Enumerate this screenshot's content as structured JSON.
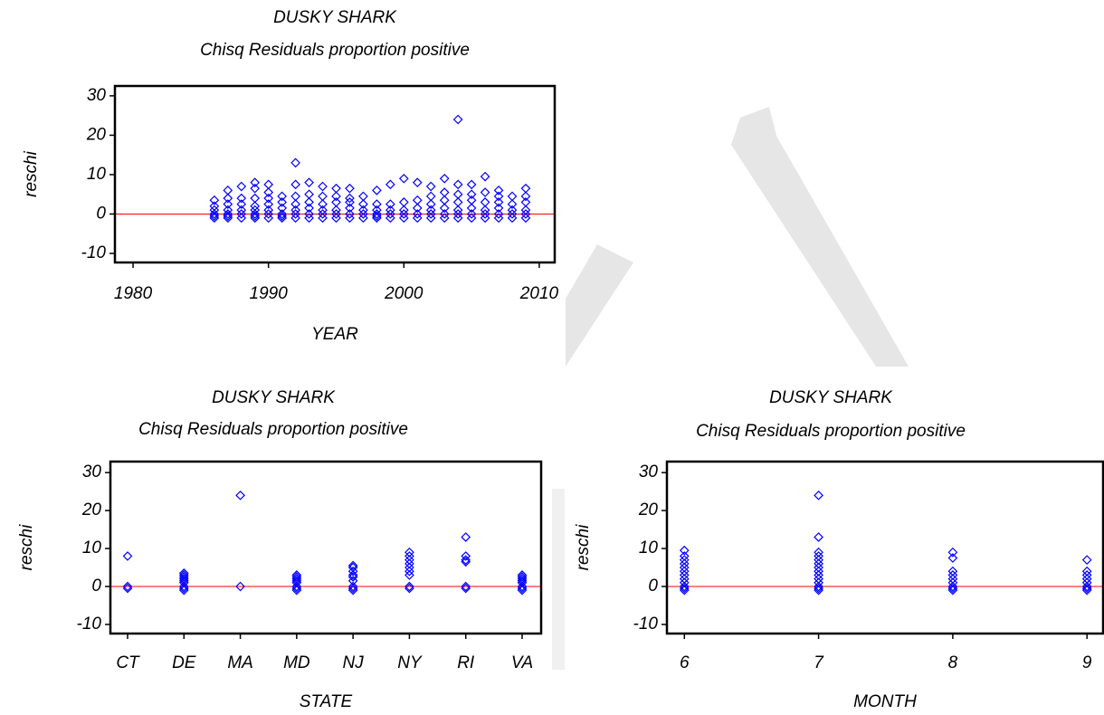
{
  "chart_data": [
    {
      "type": "scatter",
      "title": "DUSKY SHARK",
      "subtitle": "Chisq Residuals proportion positive",
      "x_label": "YEAR",
      "y_label": "reschi",
      "xlim": [
        1978.66,
        2011.14
      ],
      "xticks": [
        1980,
        1990,
        2000,
        2010
      ],
      "ylim": [
        -12.3,
        32.5
      ],
      "yticks": [
        -10,
        0,
        10,
        20,
        30
      ],
      "reference_line": {
        "value": 0,
        "color": "#ff0000"
      },
      "series": [
        {
          "color": "#0000ff",
          "marker": "diamond",
          "x": [
            1986,
            1986,
            1986,
            1986,
            1986,
            1986,
            1987,
            1987,
            1987,
            1987,
            1987,
            1987,
            1987,
            1988,
            1988,
            1988,
            1988,
            1988,
            1988,
            1989,
            1989,
            1989,
            1989,
            1989,
            1989,
            1989,
            1989,
            1990,
            1990,
            1990,
            1990,
            1990,
            1990,
            1990,
            1991,
            1991,
            1991,
            1991,
            1991,
            1991,
            1992,
            1992,
            1992,
            1992,
            1992,
            1992,
            1992,
            1993,
            1993,
            1993,
            1993,
            1993,
            1993,
            1994,
            1994,
            1994,
            1994,
            1994,
            1994,
            1995,
            1995,
            1995,
            1995,
            1995,
            1995,
            1996,
            1996,
            1996,
            1996,
            1996,
            1996,
            1997,
            1997,
            1997,
            1997,
            1997,
            1998,
            1998,
            1998,
            1998,
            1998,
            1998,
            1999,
            1999,
            1999,
            1999,
            1999,
            2000,
            2000,
            2000,
            2000,
            2000,
            2001,
            2001,
            2001,
            2001,
            2001,
            2002,
            2002,
            2002,
            2002,
            2002,
            2002,
            2003,
            2003,
            2003,
            2003,
            2003,
            2003,
            2004,
            2004,
            2004,
            2004,
            2004,
            2004,
            2004,
            2005,
            2005,
            2005,
            2005,
            2005,
            2005,
            2006,
            2006,
            2006,
            2006,
            2006,
            2006,
            2007,
            2007,
            2007,
            2007,
            2007,
            2007,
            2008,
            2008,
            2008,
            2008,
            2008,
            2009,
            2009,
            2009,
            2009,
            2009,
            2009
          ],
          "values": [
            -1,
            -0.5,
            0,
            1,
            2,
            3.5,
            -1,
            -0.5,
            0,
            1,
            2.5,
            4,
            6,
            -1,
            0,
            1,
            2.5,
            4,
            7,
            -1,
            -0.5,
            0,
            1,
            2,
            4,
            6.5,
            8,
            -1,
            0,
            1,
            2.5,
            4,
            5.5,
            7.5,
            -1,
            -0.5,
            0,
            1.5,
            3,
            4.5,
            -1,
            0,
            1,
            2.5,
            4.5,
            7.5,
            13,
            -1,
            0,
            1.5,
            3,
            5,
            8,
            -1,
            0,
            1,
            2.5,
            4.5,
            7,
            -1,
            0,
            1,
            3,
            4.5,
            6.5,
            -1,
            0,
            1.5,
            3,
            4,
            6.5,
            -1,
            0,
            1,
            2.5,
            4.5,
            -1,
            -0.5,
            0,
            1,
            2.5,
            6,
            -1,
            0,
            1,
            2.5,
            7.5,
            -1,
            0,
            1,
            3,
            9,
            -1,
            0,
            1.5,
            3.5,
            8,
            -1,
            0,
            1,
            2.5,
            4.5,
            7,
            -1,
            0,
            1.5,
            3.5,
            5.5,
            9,
            -1,
            0,
            1,
            3,
            5,
            7.5,
            24,
            -1,
            0,
            1.5,
            3.5,
            5,
            7.5,
            -1,
            0,
            1,
            3,
            5.5,
            9.5,
            -1,
            0,
            1.5,
            3,
            4.5,
            6,
            -1,
            0,
            1,
            2.5,
            4.5,
            -1,
            0,
            1,
            3,
            4.5,
            6.5
          ]
        }
      ]
    },
    {
      "type": "scatter",
      "title": "DUSKY SHARK",
      "subtitle": "Chisq Residuals proportion positive",
      "x_label": "STATE",
      "y_label": "reschi",
      "categories": [
        "CT",
        "DE",
        "MA",
        "MD",
        "NJ",
        "NY",
        "RI",
        "VA"
      ],
      "ylim": [
        -12.4,
        32.9
      ],
      "yticks": [
        -10,
        0,
        10,
        20,
        30
      ],
      "reference_line": {
        "value": 0,
        "color": "#ff0000"
      },
      "series": [
        {
          "color": "#0000ff",
          "marker": "diamond",
          "x": [
            "CT",
            "CT",
            "CT",
            "DE",
            "DE",
            "DE",
            "DE",
            "DE",
            "DE",
            "DE",
            "DE",
            "DE",
            "MA",
            "MA",
            "MD",
            "MD",
            "MD",
            "MD",
            "MD",
            "MD",
            "MD",
            "MD",
            "NJ",
            "NJ",
            "NJ",
            "NJ",
            "NJ",
            "NJ",
            "NJ",
            "NJ",
            "NJ",
            "NY",
            "NY",
            "NY",
            "NY",
            "NY",
            "NY",
            "NY",
            "NY",
            "NY",
            "RI",
            "RI",
            "RI",
            "RI",
            "RI",
            "RI",
            "VA",
            "VA",
            "VA",
            "VA",
            "VA",
            "VA",
            "VA",
            "VA"
          ],
          "values": [
            -0.5,
            0,
            8,
            -1,
            -0.5,
            0,
            1,
            1.5,
            2,
            2.5,
            3,
            3.5,
            0,
            24,
            -1,
            -0.5,
            0,
            1,
            1.5,
            2,
            2.5,
            3,
            -1,
            -0.5,
            0,
            1.5,
            2.5,
            3,
            4,
            5,
            5.5,
            -0.5,
            0,
            3,
            4,
            5,
            6,
            7,
            8,
            9,
            -0.5,
            0,
            6.5,
            7,
            8,
            13,
            -1,
            -0.5,
            0,
            1,
            1.5,
            2,
            2.5,
            3
          ]
        }
      ]
    },
    {
      "type": "scatter",
      "title": "DUSKY SHARK",
      "subtitle": "Chisq Residuals proportion positive",
      "x_label": "MONTH",
      "y_label": "reschi",
      "xlim": [
        5.87,
        9.12
      ],
      "xticks": [
        6,
        7,
        8,
        9
      ],
      "ylim": [
        -12.4,
        32.9
      ],
      "yticks": [
        -10,
        0,
        10,
        20,
        30
      ],
      "reference_line": {
        "value": 0,
        "color": "#ff0000"
      },
      "series": [
        {
          "color": "#0000ff",
          "marker": "diamond",
          "x": [
            6,
            6,
            6,
            6,
            6,
            6,
            6,
            6,
            6,
            6,
            6,
            6,
            7,
            7,
            7,
            7,
            7,
            7,
            7,
            7,
            7,
            7,
            7,
            7,
            7,
            7,
            8,
            8,
            8,
            8,
            8,
            8,
            8,
            8,
            8,
            9,
            9,
            9,
            9,
            9,
            9,
            9,
            9
          ],
          "values": [
            -1,
            -0.5,
            0,
            1,
            2,
            3,
            4,
            5,
            6,
            7,
            8,
            9.5,
            -1,
            -0.5,
            0,
            1,
            2,
            3,
            4,
            5,
            6,
            7,
            8,
            9,
            13,
            24,
            -1,
            -0.5,
            0,
            1,
            2,
            3,
            4,
            7.5,
            9,
            -1,
            -0.5,
            0,
            1,
            2,
            3,
            4,
            7
          ]
        }
      ]
    }
  ]
}
